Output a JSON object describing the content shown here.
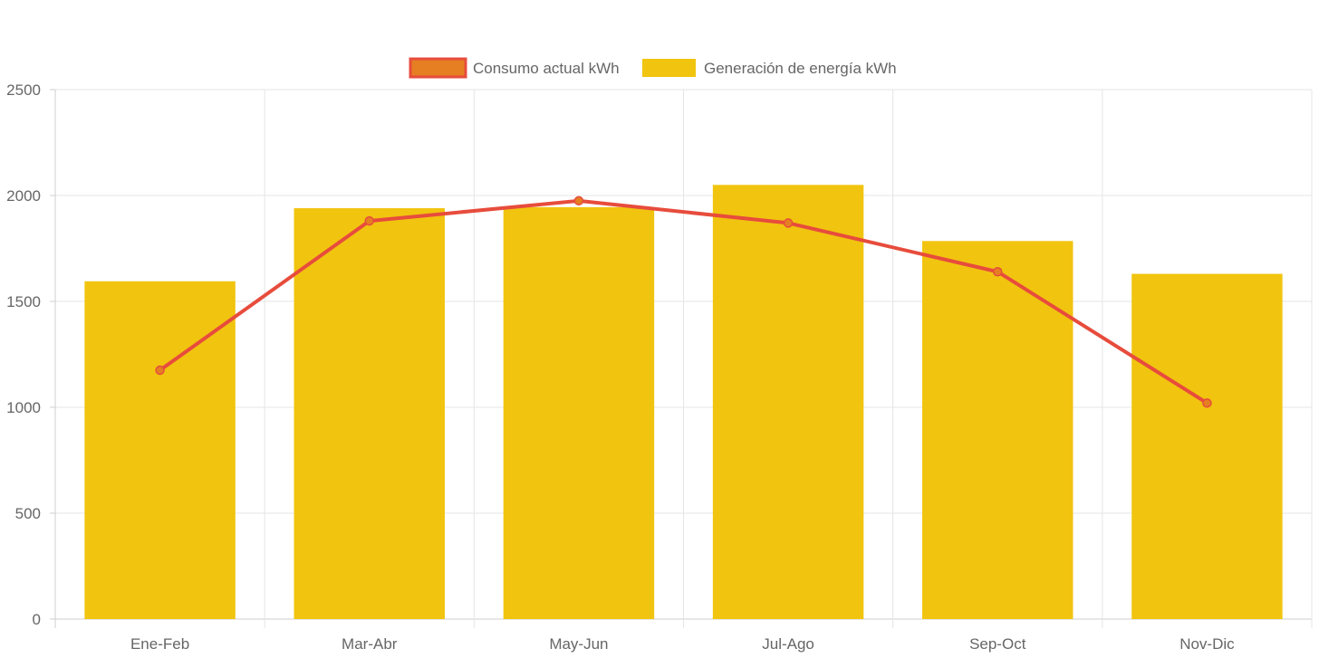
{
  "chart_data": {
    "type": "bar",
    "categories": [
      "Ene-Feb",
      "Mar-Abr",
      "May-Jun",
      "Jul-Ago",
      "Sep-Oct",
      "Nov-Dic"
    ],
    "series": [
      {
        "name": "Consumo actual kWh",
        "type": "line",
        "values": [
          1175,
          1880,
          1975,
          1870,
          1640,
          1020
        ],
        "color": "#e74c3c",
        "fill_color": "#e67e22"
      },
      {
        "name": "Generación de energía kWh",
        "type": "bar",
        "values": [
          1595,
          1940,
          1945,
          2050,
          1785,
          1630
        ],
        "color": "#f1c40f"
      }
    ],
    "y_ticks": [
      "0",
      "500",
      "1000",
      "1500",
      "2000",
      "2500"
    ],
    "ylim": [
      0,
      2500
    ],
    "grid": true,
    "legend": "top-center",
    "title": "",
    "xlabel": "",
    "ylabel": ""
  }
}
